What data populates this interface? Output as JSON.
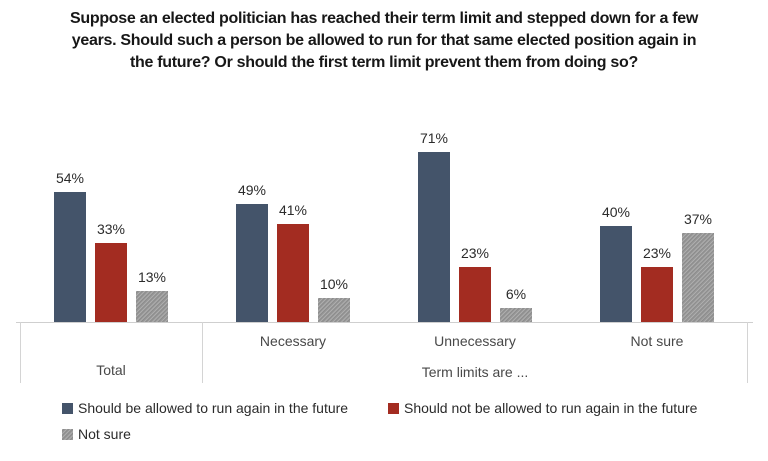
{
  "colors": {
    "allowed_blue": "#44546A",
    "not_allowed_red": "#A32C21",
    "not_sure_gray": "#969696",
    "axis_line": "#CFCFCF",
    "value_label_text": "#2B2B2B",
    "category_text": "#484848"
  },
  "chart_data": {
    "type": "bar",
    "title": "Suppose an elected politician has reached their term limit and stepped down for a few years. Should such a person be allowed to run for that same elected position again in the future? Or should the first term limit prevent them from doing so?",
    "categories": [
      "Total",
      "Necessary",
      "Unnecessary",
      "Not sure"
    ],
    "series": [
      {
        "name": "Should be allowed to run again in the future",
        "values": [
          54,
          49,
          71,
          40
        ],
        "color": "#44546A"
      },
      {
        "name": "Should not be allowed to run again in the future",
        "values": [
          33,
          41,
          23,
          23
        ],
        "color": "#A32C21"
      },
      {
        "name": "Not sure",
        "values": [
          13,
          10,
          6,
          37
        ],
        "color": "#969696"
      }
    ],
    "value_suffix": "%",
    "xlabel": "Term limits are ...",
    "ylim": [
      0,
      100
    ],
    "grid": false,
    "data_labels": true,
    "legend_position": "bottom",
    "axis_note": "Two-level category axis: 'Total' stands alone; 'Necessary', 'Unnecessary', 'Not sure' are grouped under 'Term limits are ...'"
  }
}
